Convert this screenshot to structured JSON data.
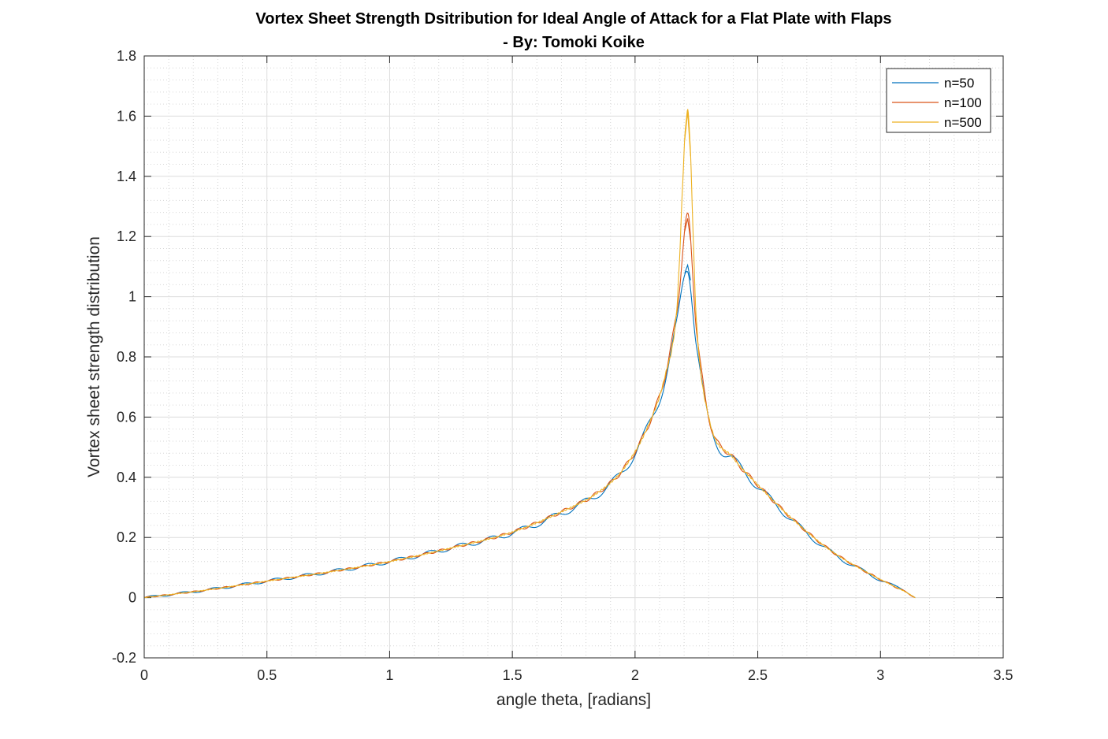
{
  "chart_data": {
    "type": "line",
    "title": "Vortex Sheet Strength Dsitribution for Ideal Angle of Attack for a Flat Plate with Flaps",
    "subtitle": "- By: Tomoki Koike",
    "xlabel": "angle theta, [radians]",
    "ylabel": "Vortex sheet strength distribution",
    "xlim": [
      0,
      3.5
    ],
    "ylim": [
      -0.2,
      1.8
    ],
    "xticks": [
      "0",
      "0.5",
      "1",
      "1.5",
      "2",
      "2.5",
      "3",
      "3.5"
    ],
    "yticks": [
      "-0.2",
      "0",
      "0.2",
      "0.4",
      "0.6",
      "0.8",
      "1",
      "1.2",
      "1.4",
      "1.6",
      "1.8"
    ],
    "grid": true,
    "minor_grid": true,
    "legend_position": "top-right",
    "peak_x": 2.2143,
    "series": [
      {
        "name": "n=50",
        "color": "#0072BD",
        "x": [
          0,
          0.25,
          0.5,
          0.75,
          1.0,
          1.25,
          1.5,
          1.7,
          1.85,
          1.95,
          2.05,
          2.12,
          2.17,
          2.2143,
          2.25,
          2.3,
          2.4,
          2.5,
          2.65,
          2.8,
          2.95,
          3.05,
          3.1,
          3.1416
        ],
        "y": [
          0,
          0.025,
          0.055,
          0.085,
          0.12,
          0.165,
          0.215,
          0.28,
          0.345,
          0.42,
          0.56,
          0.72,
          0.9,
          1.105,
          0.85,
          0.58,
          0.46,
          0.37,
          0.25,
          0.15,
          0.08,
          0.04,
          0.025,
          0.0
        ]
      },
      {
        "name": "n=100",
        "color": "#D95319",
        "x": [
          0,
          0.25,
          0.5,
          0.75,
          1.0,
          1.25,
          1.5,
          1.7,
          1.85,
          1.95,
          2.05,
          2.12,
          2.17,
          2.2143,
          2.25,
          2.3,
          2.4,
          2.5,
          2.65,
          2.8,
          2.95,
          3.05,
          3.1,
          3.1416
        ],
        "y": [
          0,
          0.025,
          0.055,
          0.085,
          0.12,
          0.165,
          0.218,
          0.285,
          0.35,
          0.425,
          0.565,
          0.73,
          0.95,
          1.26,
          0.9,
          0.6,
          0.465,
          0.375,
          0.255,
          0.155,
          0.082,
          0.04,
          0.02,
          0.0
        ]
      },
      {
        "name": "n=500",
        "color": "#EDB120",
        "x": [
          0,
          0.25,
          0.5,
          0.75,
          1.0,
          1.25,
          1.5,
          1.7,
          1.85,
          1.95,
          2.05,
          2.12,
          2.17,
          2.2143,
          2.25,
          2.3,
          2.4,
          2.5,
          2.65,
          2.8,
          2.95,
          3.05,
          3.1,
          3.1416
        ],
        "y": [
          0,
          0.025,
          0.055,
          0.085,
          0.12,
          0.165,
          0.218,
          0.285,
          0.35,
          0.425,
          0.565,
          0.73,
          0.96,
          1.615,
          0.92,
          0.6,
          0.465,
          0.375,
          0.255,
          0.155,
          0.082,
          0.04,
          0.02,
          0.0
        ]
      }
    ]
  }
}
